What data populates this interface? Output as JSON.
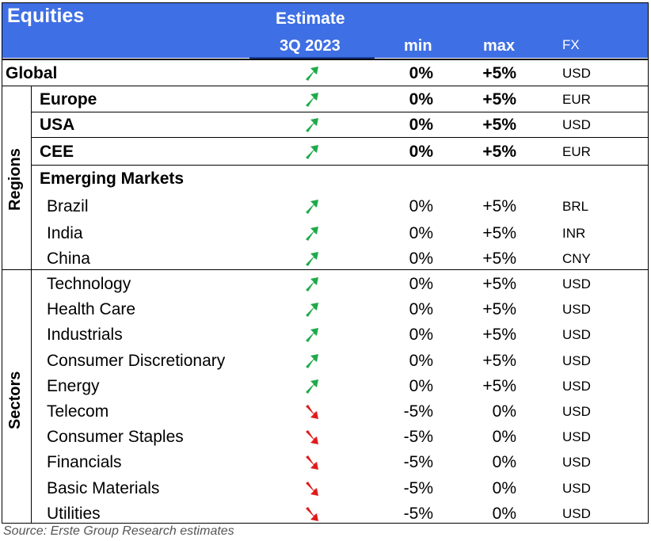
{
  "header": {
    "title": "Equities",
    "estimate_label": "Estimate",
    "period_label": "3Q 2023",
    "min_label": "min",
    "max_label": "max",
    "fx_label": "FX",
    "background_color": "#3f6fe4"
  },
  "colors": {
    "up_arrow": "#1faa4a",
    "down_arrow": "#e01b1b"
  },
  "global_row": {
    "name": "Global",
    "trend": "up",
    "min": "0%",
    "max": "+5%",
    "fx": "USD"
  },
  "groups": {
    "regions_label": "Regions",
    "sectors_label": "Sectors"
  },
  "regions": [
    {
      "name": "Europe",
      "trend": "up",
      "min": "0%",
      "max": "+5%",
      "fx": "EUR"
    },
    {
      "name": "USA",
      "trend": "up",
      "min": "0%",
      "max": "+5%",
      "fx": "USD"
    },
    {
      "name": "CEE",
      "trend": "up",
      "min": "0%",
      "max": "+5%",
      "fx": "EUR"
    },
    {
      "name": "Emerging Markets",
      "trend": "",
      "min": "",
      "max": "",
      "fx": ""
    },
    {
      "name": "Brazil",
      "trend": "up",
      "min": "0%",
      "max": "+5%",
      "fx": "BRL"
    },
    {
      "name": "India",
      "trend": "up",
      "min": "0%",
      "max": "+5%",
      "fx": "INR"
    },
    {
      "name": "China",
      "trend": "up",
      "min": "0%",
      "max": "+5%",
      "fx": "CNY"
    }
  ],
  "sectors": [
    {
      "name": "Technology",
      "trend": "up",
      "min": "0%",
      "max": "+5%",
      "fx": "USD"
    },
    {
      "name": "Health Care",
      "trend": "up",
      "min": "0%",
      "max": "+5%",
      "fx": "USD"
    },
    {
      "name": "Industrials",
      "trend": "up",
      "min": "0%",
      "max": "+5%",
      "fx": "USD"
    },
    {
      "name": "Consumer Discretionary",
      "trend": "up",
      "min": "0%",
      "max": "+5%",
      "fx": "USD"
    },
    {
      "name": "Energy",
      "trend": "up",
      "min": "0%",
      "max": "+5%",
      "fx": "USD"
    },
    {
      "name": "Telecom",
      "trend": "down",
      "min": "-5%",
      "max": "0%",
      "fx": "USD"
    },
    {
      "name": "Consumer Staples",
      "trend": "down",
      "min": "-5%",
      "max": "0%",
      "fx": "USD"
    },
    {
      "name": "Financials",
      "trend": "down",
      "min": "-5%",
      "max": "0%",
      "fx": "USD"
    },
    {
      "name": "Basic Materials",
      "trend": "down",
      "min": "-5%",
      "max": "0%",
      "fx": "USD"
    },
    {
      "name": "Utilities",
      "trend": "down",
      "min": "-5%",
      "max": "0%",
      "fx": "USD"
    }
  ],
  "source": "Source: Erste Group Research estimates"
}
